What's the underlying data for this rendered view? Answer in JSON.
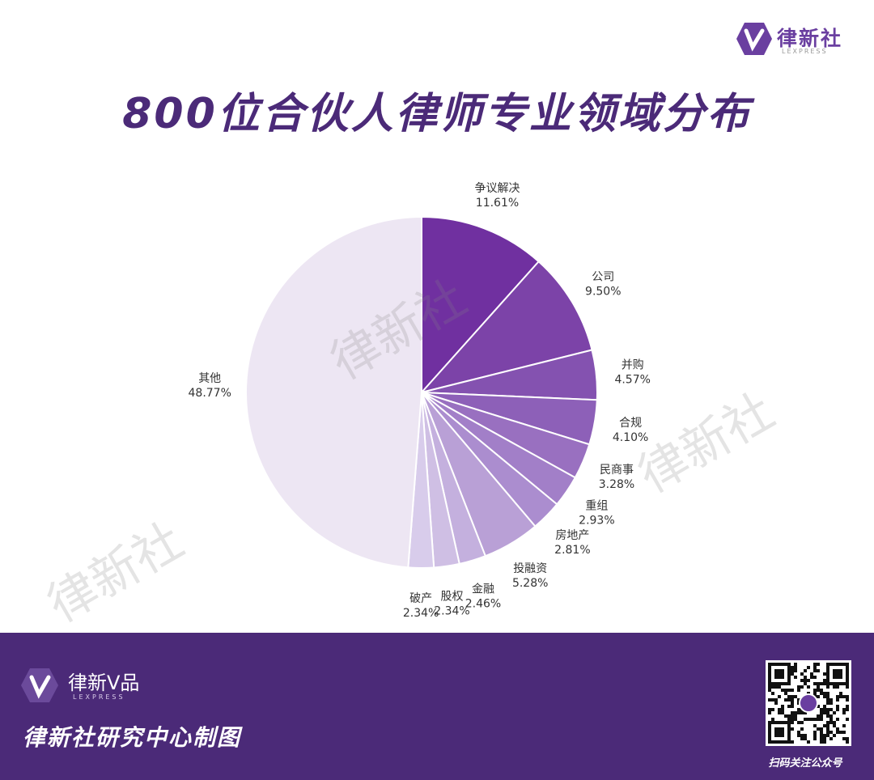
{
  "header": {
    "logo_name": "律新社",
    "logo_sub": "LEXPRESS",
    "title": "800位合伙人律师专业领域分布"
  },
  "watermark": "律新社",
  "footer": {
    "brand": "律新V品",
    "brand_sub": "LEXPRESS",
    "credit": "律新社研究中心制图",
    "qr_caption": "扫码关注公众号"
  },
  "chart_data": {
    "type": "pie",
    "title": "800位合伙人律师专业领域分布",
    "start": "12 o'clock, clockwise",
    "legend": "none",
    "categories": [
      "争议解决",
      "公司",
      "并购",
      "合规",
      "民商事",
      "重组",
      "房地产",
      "投融资",
      "金融",
      "股权",
      "破产",
      "其他"
    ],
    "values": [
      11.61,
      9.5,
      4.57,
      4.1,
      3.28,
      2.93,
      2.81,
      5.28,
      2.46,
      2.34,
      2.34,
      48.77
    ],
    "labels": [
      "11.61%",
      "9.50%",
      "4.57%",
      "4.10%",
      "3.28%",
      "2.93%",
      "2.81%",
      "5.28%",
      "2.46%",
      "2.34%",
      "2.34%",
      "48.77%"
    ],
    "colors": [
      "#7030a0",
      "#7c43a8",
      "#8452b0",
      "#8d60b8",
      "#9970c0",
      "#a27fc8",
      "#ab8dcf",
      "#b9a0d6",
      "#c4b0de",
      "#cfbfe4",
      "#d8cceb",
      "#ede6f3"
    ]
  }
}
